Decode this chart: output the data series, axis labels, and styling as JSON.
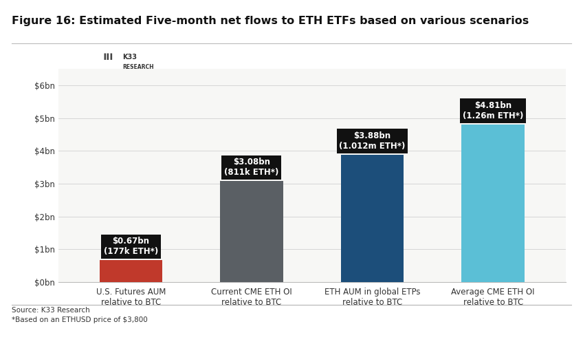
{
  "title": "Figure 16: Estimated Five-month net flows to ETH ETFs based on various scenarios",
  "categories": [
    "U.S. Futures AUM\nrelative to BTC",
    "Current CME ETH OI\nrelative to BTC",
    "ETH AUM in global ETPs\nrelative to BTC",
    "Average CME ETH OI\nrelative to BTC"
  ],
  "values": [
    0.67,
    3.08,
    3.88,
    4.81
  ],
  "bar_colors": [
    "#c0392b",
    "#5a5f64",
    "#1c4e7a",
    "#5bbfd6"
  ],
  "bar_labels": [
    "$0.67bn\n(177k ETH*)",
    "$3.08bn\n(811k ETH*)",
    "$3.88bn\n(1.012m ETH*)",
    "$4.81bn\n(1.26m ETH*)"
  ],
  "ylim": [
    0,
    6.5
  ],
  "yticks": [
    0,
    1,
    2,
    3,
    4,
    5,
    6
  ],
  "ytick_labels": [
    "$0bn",
    "$1bn",
    "$2bn",
    "$3bn",
    "$4bn",
    "$5bn",
    "$6bn"
  ],
  "source_text": "Source: K33 Research\n*Based on an ETHUSD price of $3,800",
  "background_color": "#ffffff",
  "plot_bg_color": "#f7f7f5",
  "label_box_color": "#111111",
  "label_text_color": "#ffffff",
  "title_fontsize": 11.5,
  "axis_fontsize": 8.5,
  "label_fontsize": 8.5,
  "source_fontsize": 7.5
}
